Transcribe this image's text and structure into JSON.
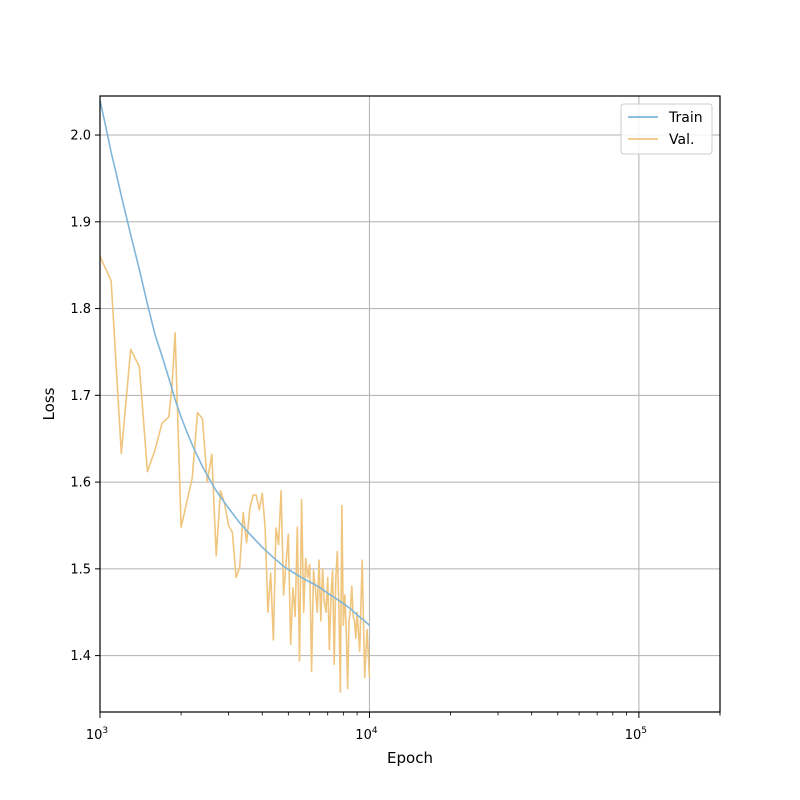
{
  "chart_data": {
    "type": "line",
    "title": "",
    "xlabel": "Epoch",
    "ylabel": "Loss",
    "xscale": "log",
    "xlim": [
      1000,
      200000
    ],
    "ylim": [
      1.335,
      2.045
    ],
    "x_major_ticks": [
      1000,
      10000,
      100000
    ],
    "x_tick_labels": [
      {
        "base": "10",
        "exp": "3"
      },
      {
        "base": "10",
        "exp": "4"
      },
      {
        "base": "10",
        "exp": "5"
      }
    ],
    "y_ticks": [
      1.4,
      1.5,
      1.6,
      1.7,
      1.8,
      1.9,
      2.0
    ],
    "y_tick_labels": [
      "1.4",
      "1.5",
      "1.6",
      "1.7",
      "1.8",
      "1.9",
      "2.0"
    ],
    "grid": true,
    "legend_position": "top-right",
    "series": [
      {
        "name": "Train",
        "color": "#7fb6d9",
        "x": [
          1000,
          1050,
          1100,
          1150,
          1200,
          1300,
          1400,
          1500,
          1600,
          1700,
          1800,
          1900,
          2000,
          2100,
          2200,
          2300,
          2400,
          2500,
          2700,
          3000,
          3300,
          3600,
          4000,
          4400,
          4800,
          5200,
          5600,
          6000,
          6500,
          7000,
          7500,
          8000,
          8500,
          9000,
          9500,
          10000
        ],
        "values": [
          2.04,
          2.01,
          1.98,
          1.955,
          1.93,
          1.885,
          1.845,
          1.805,
          1.77,
          1.745,
          1.72,
          1.695,
          1.675,
          1.658,
          1.643,
          1.63,
          1.618,
          1.608,
          1.59,
          1.57,
          1.553,
          1.54,
          1.525,
          1.513,
          1.503,
          1.496,
          1.49,
          1.485,
          1.479,
          1.472,
          1.466,
          1.46,
          1.454,
          1.447,
          1.441,
          1.435
        ]
      },
      {
        "name": "Val.",
        "color": "#f0c57e",
        "x": [
          1000,
          1100,
          1200,
          1300,
          1400,
          1500,
          1600,
          1700,
          1800,
          1850,
          1900,
          2000,
          2200,
          2300,
          2400,
          2500,
          2600,
          2700,
          2800,
          2900,
          3000,
          3100,
          3200,
          3300,
          3400,
          3500,
          3600,
          3700,
          3800,
          3900,
          4000,
          4100,
          4200,
          4300,
          4400,
          4500,
          4600,
          4700,
          4800,
          4900,
          5000,
          5100,
          5200,
          5300,
          5400,
          5500,
          5600,
          5700,
          5800,
          5900,
          6000,
          6100,
          6200,
          6300,
          6400,
          6500,
          6600,
          6700,
          6800,
          6900,
          7000,
          7100,
          7200,
          7300,
          7400,
          7500,
          7600,
          7700,
          7800,
          7900,
          8000,
          8100,
          8200,
          8300,
          8400,
          8500,
          8600,
          8700,
          8800,
          8900,
          9000,
          9200,
          9400,
          9600,
          9800,
          10000
        ],
        "values": [
          1.86,
          1.832,
          1.633,
          1.753,
          1.733,
          1.612,
          1.637,
          1.668,
          1.675,
          1.71,
          1.772,
          1.548,
          1.605,
          1.68,
          1.673,
          1.6,
          1.632,
          1.515,
          1.59,
          1.575,
          1.55,
          1.542,
          1.49,
          1.502,
          1.565,
          1.53,
          1.57,
          1.585,
          1.585,
          1.568,
          1.587,
          1.548,
          1.45,
          1.495,
          1.418,
          1.547,
          1.528,
          1.59,
          1.47,
          1.505,
          1.54,
          1.413,
          1.478,
          1.445,
          1.548,
          1.394,
          1.58,
          1.45,
          1.512,
          1.49,
          1.505,
          1.382,
          1.498,
          1.478,
          1.45,
          1.51,
          1.44,
          1.5,
          1.462,
          1.45,
          1.49,
          1.407,
          1.47,
          1.498,
          1.39,
          1.49,
          1.52,
          1.457,
          1.358,
          1.573,
          1.435,
          1.47,
          1.43,
          1.362,
          1.44,
          1.453,
          1.48,
          1.445,
          1.44,
          1.42,
          1.45,
          1.405,
          1.51,
          1.375,
          1.43,
          1.375
        ]
      }
    ]
  }
}
